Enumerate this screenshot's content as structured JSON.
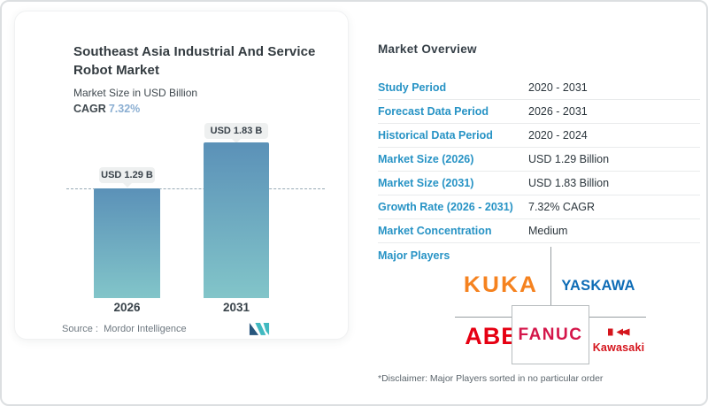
{
  "chart_card": {
    "title": "Southeast Asia Industrial And Service Robot Market",
    "subtitle": "Market Size in USD Billion",
    "cagr_label": "CAGR",
    "cagr_value": "7.32%",
    "source_label": "Source :",
    "source_value": "Mordor Intelligence"
  },
  "chart_data": {
    "type": "bar",
    "title": "Southeast Asia Industrial And Service Robot Market",
    "ylabel": "Market Size in USD Billion",
    "categories": [
      "2026",
      "2031"
    ],
    "values": [
      1.29,
      1.83
    ],
    "bar_labels": [
      "USD 1.29 B",
      "USD 1.83 B"
    ],
    "cagr_percent": 7.32,
    "reference_line_value": 1.29,
    "legend": "none",
    "bar_gradient_top": "#5b91b8",
    "bar_gradient_bottom": "#82c5c9"
  },
  "overview": {
    "heading": "Market Overview",
    "rows": [
      {
        "label": "Study Period",
        "value": "2020 - 2031"
      },
      {
        "label": "Forecast Data Period",
        "value": "2026 - 2031"
      },
      {
        "label": "Historical Data Period",
        "value": "2020 - 2024"
      },
      {
        "label": "Market Size (2026)",
        "value": "USD 1.29 Billion"
      },
      {
        "label": "Market Size (2031)",
        "value": "USD 1.83 Billion"
      },
      {
        "label": "Growth Rate (2026 - 2031)",
        "value": "7.32% CAGR"
      },
      {
        "label": "Market Concentration",
        "value": "Medium"
      }
    ],
    "major_players_label": "Major Players",
    "players": {
      "kuka": "KUKA",
      "yaskawa": "YASKAWA",
      "abb": "ABB",
      "fanuc": "FANUC",
      "kawasaki": "Kawasaki"
    },
    "player_colors": {
      "kuka": "#f5821f",
      "yaskawa": "#0e6cb6",
      "abb": "#e60012",
      "fanuc": "#d4164a",
      "kawasaki": "#d5151d"
    },
    "disclaimer": "*Disclaimer: Major Players sorted in no particular order"
  },
  "colors": {
    "row_label_blue": "#2793c5",
    "cagr_value_blue": "#8aaed2",
    "logo_navy": "#27567d",
    "logo_teal": "#41b9c0",
    "dashed_line": "#97aab5"
  }
}
